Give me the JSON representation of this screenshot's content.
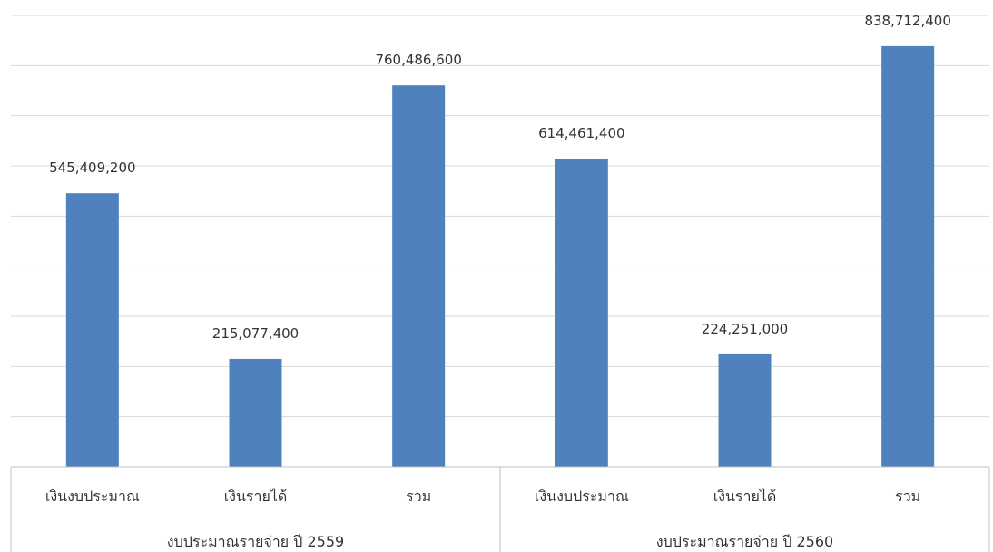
{
  "chart_data": {
    "type": "bar",
    "groups": [
      {
        "label": "งบประมาณรายจ่าย ปี 2559",
        "categories": [
          "เงินงบประมาณ",
          "เงินรายได้",
          "รวม"
        ],
        "values": [
          545409200,
          215077400,
          760486600
        ],
        "value_labels": [
          "545,409,200",
          "215,077,400",
          "760,486,600"
        ]
      },
      {
        "label": "งบประมาณรายจ่าย ปี 2560",
        "categories": [
          "เงินงบประมาณ",
          "เงินรายได้",
          "รวม"
        ],
        "values": [
          614461400,
          224251000,
          838712400
        ],
        "value_labels": [
          "614,461,400",
          "224,251,000",
          "838,712,400"
        ]
      }
    ],
    "ylim": [
      0,
      900000000
    ],
    "gridline_step": 100000000,
    "grid": true,
    "legend": "none",
    "bar_color": "#4f81bd",
    "grid_color": "#d9d9d9",
    "axis_color": "#bfbfbf"
  }
}
